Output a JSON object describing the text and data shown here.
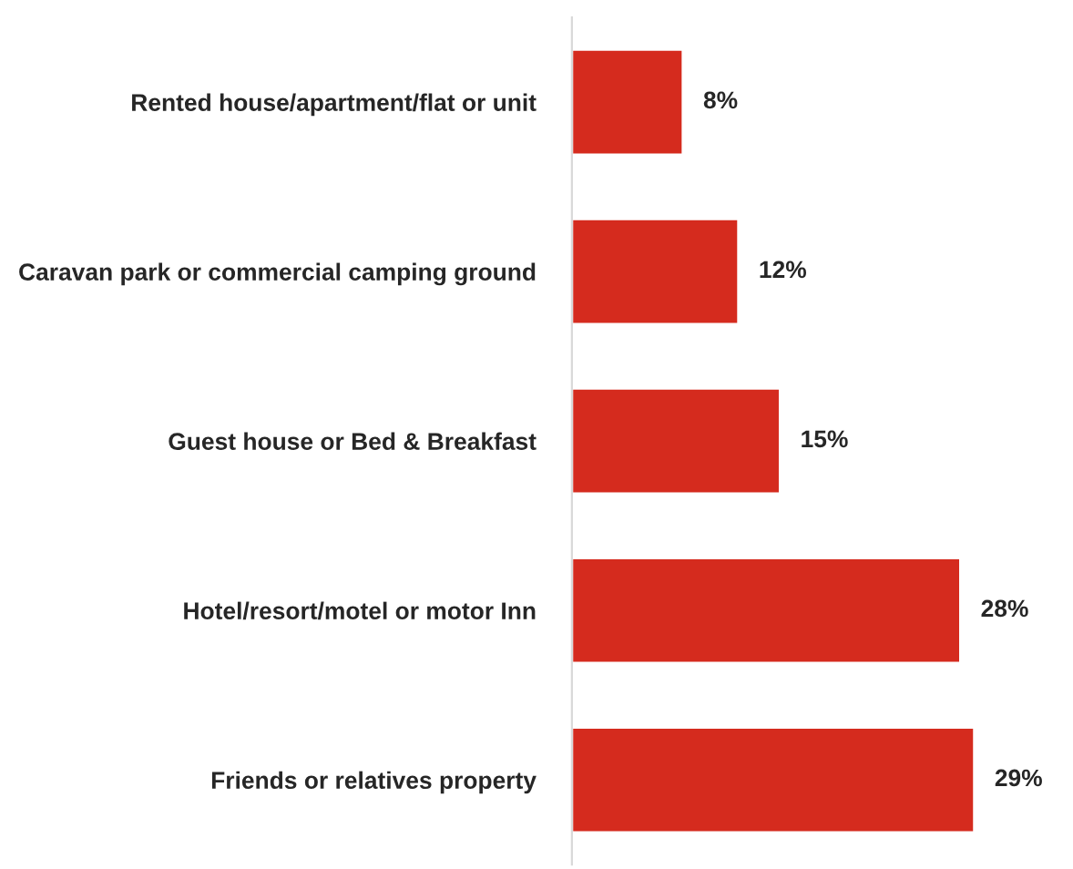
{
  "chart_data": {
    "type": "bar",
    "orientation": "horizontal",
    "categories": [
      "Rented house/apartment/flat or unit",
      "Caravan park or commercial camping ground",
      "Guest house or Bed & Breakfast",
      "Hotel/resort/motel or motor Inn",
      "Friends or relatives property"
    ],
    "values": [
      8,
      12,
      15,
      28,
      29
    ],
    "value_labels": [
      "8%",
      "12%",
      "15%",
      "28%",
      "29%"
    ],
    "color": "#d52b1e",
    "grid": false,
    "legend": false
  }
}
